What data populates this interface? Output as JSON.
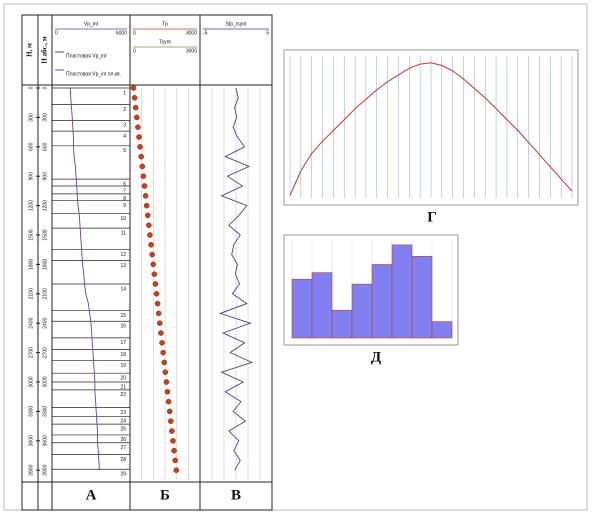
{
  "chart_data": [
    {
      "type": "well-log",
      "ylabel": "Н, м",
      "ylabel2": "Н абс., м",
      "ylim": [
        0,
        4000
      ],
      "yticks": [
        0,
        300,
        600,
        900,
        1200,
        1500,
        1800,
        2100,
        2400,
        2700,
        3000,
        3300,
        3600,
        3900
      ],
      "depth": [
        0,
        100,
        200,
        300,
        400,
        500,
        600,
        700,
        800,
        900,
        1000,
        1100,
        1200,
        1300,
        1400,
        1500,
        1600,
        1700,
        1800,
        1900,
        2000,
        2100,
        2200,
        2300,
        2400,
        2500,
        2600,
        2700,
        2800,
        2900,
        3000,
        3100,
        3200,
        3300,
        3400,
        3500,
        3600,
        3700,
        3800,
        3900
      ],
      "layers": {
        "labels": [
          1,
          2,
          3,
          4,
          5,
          6,
          7,
          8,
          9,
          10,
          11,
          12,
          13,
          14,
          15,
          16,
          17,
          18,
          19,
          20,
          21,
          22,
          23,
          24,
          25,
          26,
          27,
          28,
          29
        ],
        "tops": [
          0,
          170,
          330,
          440,
          590,
          930,
          1000,
          1080,
          1150,
          1280,
          1430,
          1650,
          1760,
          2000,
          2270,
          2380,
          2550,
          2670,
          2780,
          2910,
          3000,
          3080,
          3260,
          3350,
          3430,
          3540,
          3620,
          3740,
          3890
        ]
      },
      "tracks": [
        {
          "label": "А",
          "name": "Vp_int",
          "color": "#6a3fa0",
          "xlim": [
            0,
            6000
          ],
          "legend": [
            "Пластовая Vp_int",
            "Пластовая Vp_int пл.кв."
          ],
          "values": [
            1400,
            1450,
            1500,
            1550,
            1600,
            1650,
            1650,
            1700,
            1800,
            1850,
            1900,
            1950,
            2000,
            2100,
            2150,
            2200,
            2250,
            2300,
            2350,
            2450,
            2500,
            2600,
            2800,
            2900,
            3000,
            3050,
            3100,
            3150,
            3200,
            3250,
            3300,
            3300,
            3350,
            3400,
            3450,
            3500,
            3500,
            3550,
            3600,
            3650
          ]
        },
        {
          "label": "Б",
          "series": [
            {
              "name": "Tp",
              "color": "#c8401e",
              "xlim": [
                0,
                3000
              ],
              "values": [
                150,
                197,
                244,
                291,
                338,
                385,
                432,
                479,
                526,
                573,
                620,
                667,
                714,
                761,
                808,
                855,
                902,
                949,
                996,
                1043,
                1090,
                1137,
                1184,
                1231,
                1278,
                1325,
                1372,
                1419,
                1466,
                1513,
                1560,
                1607,
                1654,
                1701,
                1748,
                1795,
                1842,
                1889,
                1936,
                1983
              ]
            },
            {
              "name": "Tsynt",
              "color": "#8b8b3a",
              "xlim": [
                0,
                3000
              ]
            }
          ]
        },
        {
          "label": "В",
          "name": "Stp_tsynt",
          "color": "#5b3a8c",
          "xlim": [
            -5,
            5
          ],
          "values": [
            0,
            0.3,
            -0.2,
            0.1,
            -0.4,
            0.2,
            1.2,
            -1.5,
            1.8,
            -1.2,
            0.9,
            -2,
            1.5,
            0.4,
            -1,
            0.6,
            -0.3,
            -0.6,
            0.2,
            -0.1,
            0.5,
            -0.5,
            1.5,
            -2.2,
            2.0,
            -1.8,
            1.2,
            -0.8,
            2.2,
            -2.0,
            1.0,
            -1.5,
            0.7,
            -0.4,
            1.3,
            -1.0,
            0.4,
            -0.3,
            0.6,
            -0.2
          ]
        }
      ]
    },
    {
      "type": "line",
      "label": "Г",
      "color": "#c0392b",
      "grid": true,
      "xlim": [
        0,
        26
      ],
      "ylim": [
        0,
        1.05
      ],
      "x": [
        0,
        1,
        2,
        3,
        4,
        5,
        6,
        7,
        8,
        9,
        10,
        11,
        12,
        13,
        14,
        15,
        16,
        17,
        18,
        19,
        20,
        21,
        22,
        23,
        24,
        25,
        26
      ],
      "values": [
        0.02,
        0.2,
        0.33,
        0.42,
        0.5,
        0.58,
        0.66,
        0.73,
        0.8,
        0.86,
        0.91,
        0.96,
        0.99,
        1.0,
        0.98,
        0.94,
        0.88,
        0.81,
        0.74,
        0.66,
        0.58,
        0.5,
        0.41,
        0.32,
        0.23,
        0.14,
        0.05
      ]
    },
    {
      "type": "histogram",
      "label": "Д",
      "color": "#8080f0",
      "grid": true,
      "ylim": [
        0,
        60
      ],
      "bins": [
        -1,
        -0.75,
        -0.5,
        -0.25,
        0,
        0.25,
        0.5,
        0.75,
        1
      ],
      "values": [
        36,
        40,
        17,
        33,
        45,
        57,
        50,
        10
      ]
    }
  ]
}
